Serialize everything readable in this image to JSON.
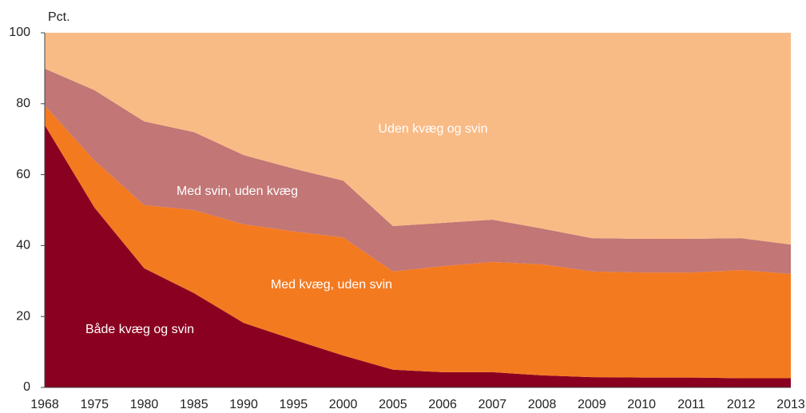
{
  "chart_data": {
    "type": "stacked_area",
    "y_label": "Pct.",
    "categories": [
      "1968",
      "1975",
      "1980",
      "1985",
      "1990",
      "1995",
      "2000",
      "2005",
      "2006",
      "2007",
      "2008",
      "2009",
      "2010",
      "2011",
      "2012",
      "2013"
    ],
    "series": [
      {
        "name": "Både kvæg og svin",
        "color": "#8a0020",
        "values": [
          74,
          50.7,
          33.6,
          26.6,
          18.2,
          13.5,
          9,
          5,
          4.3,
          4.3,
          3.4,
          2.9,
          2.8,
          2.8,
          2.6,
          2.6
        ]
      },
      {
        "name": "Med kvæg, uden svin",
        "color": "#f47a20",
        "values": [
          5.5,
          13.3,
          17.8,
          23.4,
          27.8,
          30.5,
          33.3,
          27.7,
          29.9,
          31.1,
          31.3,
          29.8,
          29.6,
          29.6,
          30.5,
          29.4
        ]
      },
      {
        "name": "Med svin, uden kvæg",
        "color": "#c27676",
        "values": [
          10.4,
          19.8,
          23.6,
          22,
          19.5,
          17.7,
          16,
          12.8,
          12.2,
          11.9,
          10.1,
          9.4,
          9.5,
          9.5,
          9,
          8.3
        ]
      },
      {
        "name": "Uden kvæg og svin",
        "color": "#f9bb86",
        "values": [
          10.1,
          16.2,
          25,
          28,
          34.5,
          38.3,
          41.7,
          54.5,
          53.6,
          52.7,
          55.2,
          57.9,
          58.1,
          58.1,
          57.9,
          59.7
        ]
      }
    ],
    "ylim": [
      0,
      100
    ],
    "yticks": [
      0,
      20,
      40,
      60,
      80,
      100
    ]
  }
}
